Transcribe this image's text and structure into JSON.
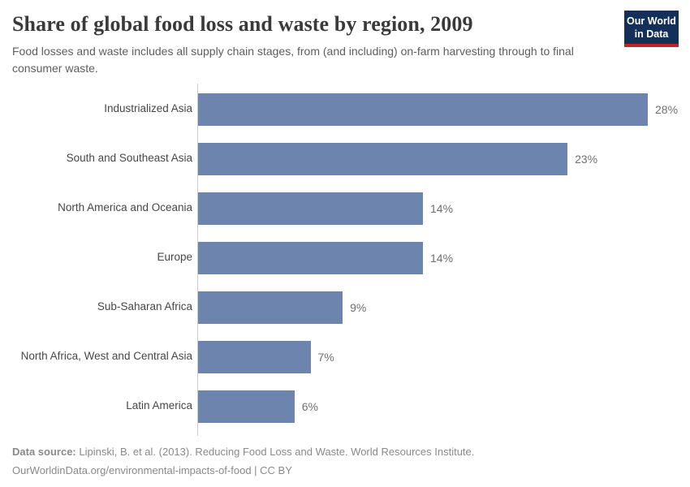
{
  "header": {
    "title": "Share of global food loss and waste by region, 2009",
    "subtitle": "Food losses and waste includes all supply chain stages, from (and including) on-farm harvesting through to final consumer waste.",
    "logo": {
      "line1": "Our World",
      "line2": "in Data"
    }
  },
  "chart_data": {
    "type": "bar",
    "orientation": "horizontal",
    "title": "Share of global food loss and waste by region, 2009",
    "categories": [
      "Industrialized Asia",
      "South and Southeast Asia",
      "North America and Oceania",
      "Europe",
      "Sub-Saharan Africa",
      "North Africa, West and Central Asia",
      "Latin America"
    ],
    "values": [
      28,
      23,
      14,
      14,
      9,
      7,
      6
    ],
    "value_labels": [
      "28%",
      "23%",
      "14%",
      "14%",
      "9%",
      "7%",
      "6%"
    ],
    "unit": "%",
    "xlim": [
      0,
      28
    ],
    "grid": false,
    "legend": "none",
    "bar_color": "#6d84ae",
    "axis_color": "#cccccc"
  },
  "footer": {
    "data_source_label": "Data source:",
    "data_source_text": " Lipinski, B. et al. (2013). Reducing Food Loss and Waste. World Resources Institute.",
    "attribution": "OurWorldinData.org/environmental-impacts-of-food | CC BY"
  },
  "colors": {
    "logo_background": "#143058",
    "logo_accent_red": "#c3232d",
    "title_text": "#3a3a3a",
    "subtitle_text": "#5e5e5e",
    "category_label_text": "#474747",
    "value_label_text": "#6f6f6f",
    "footer_text": "#8a8a8a"
  }
}
